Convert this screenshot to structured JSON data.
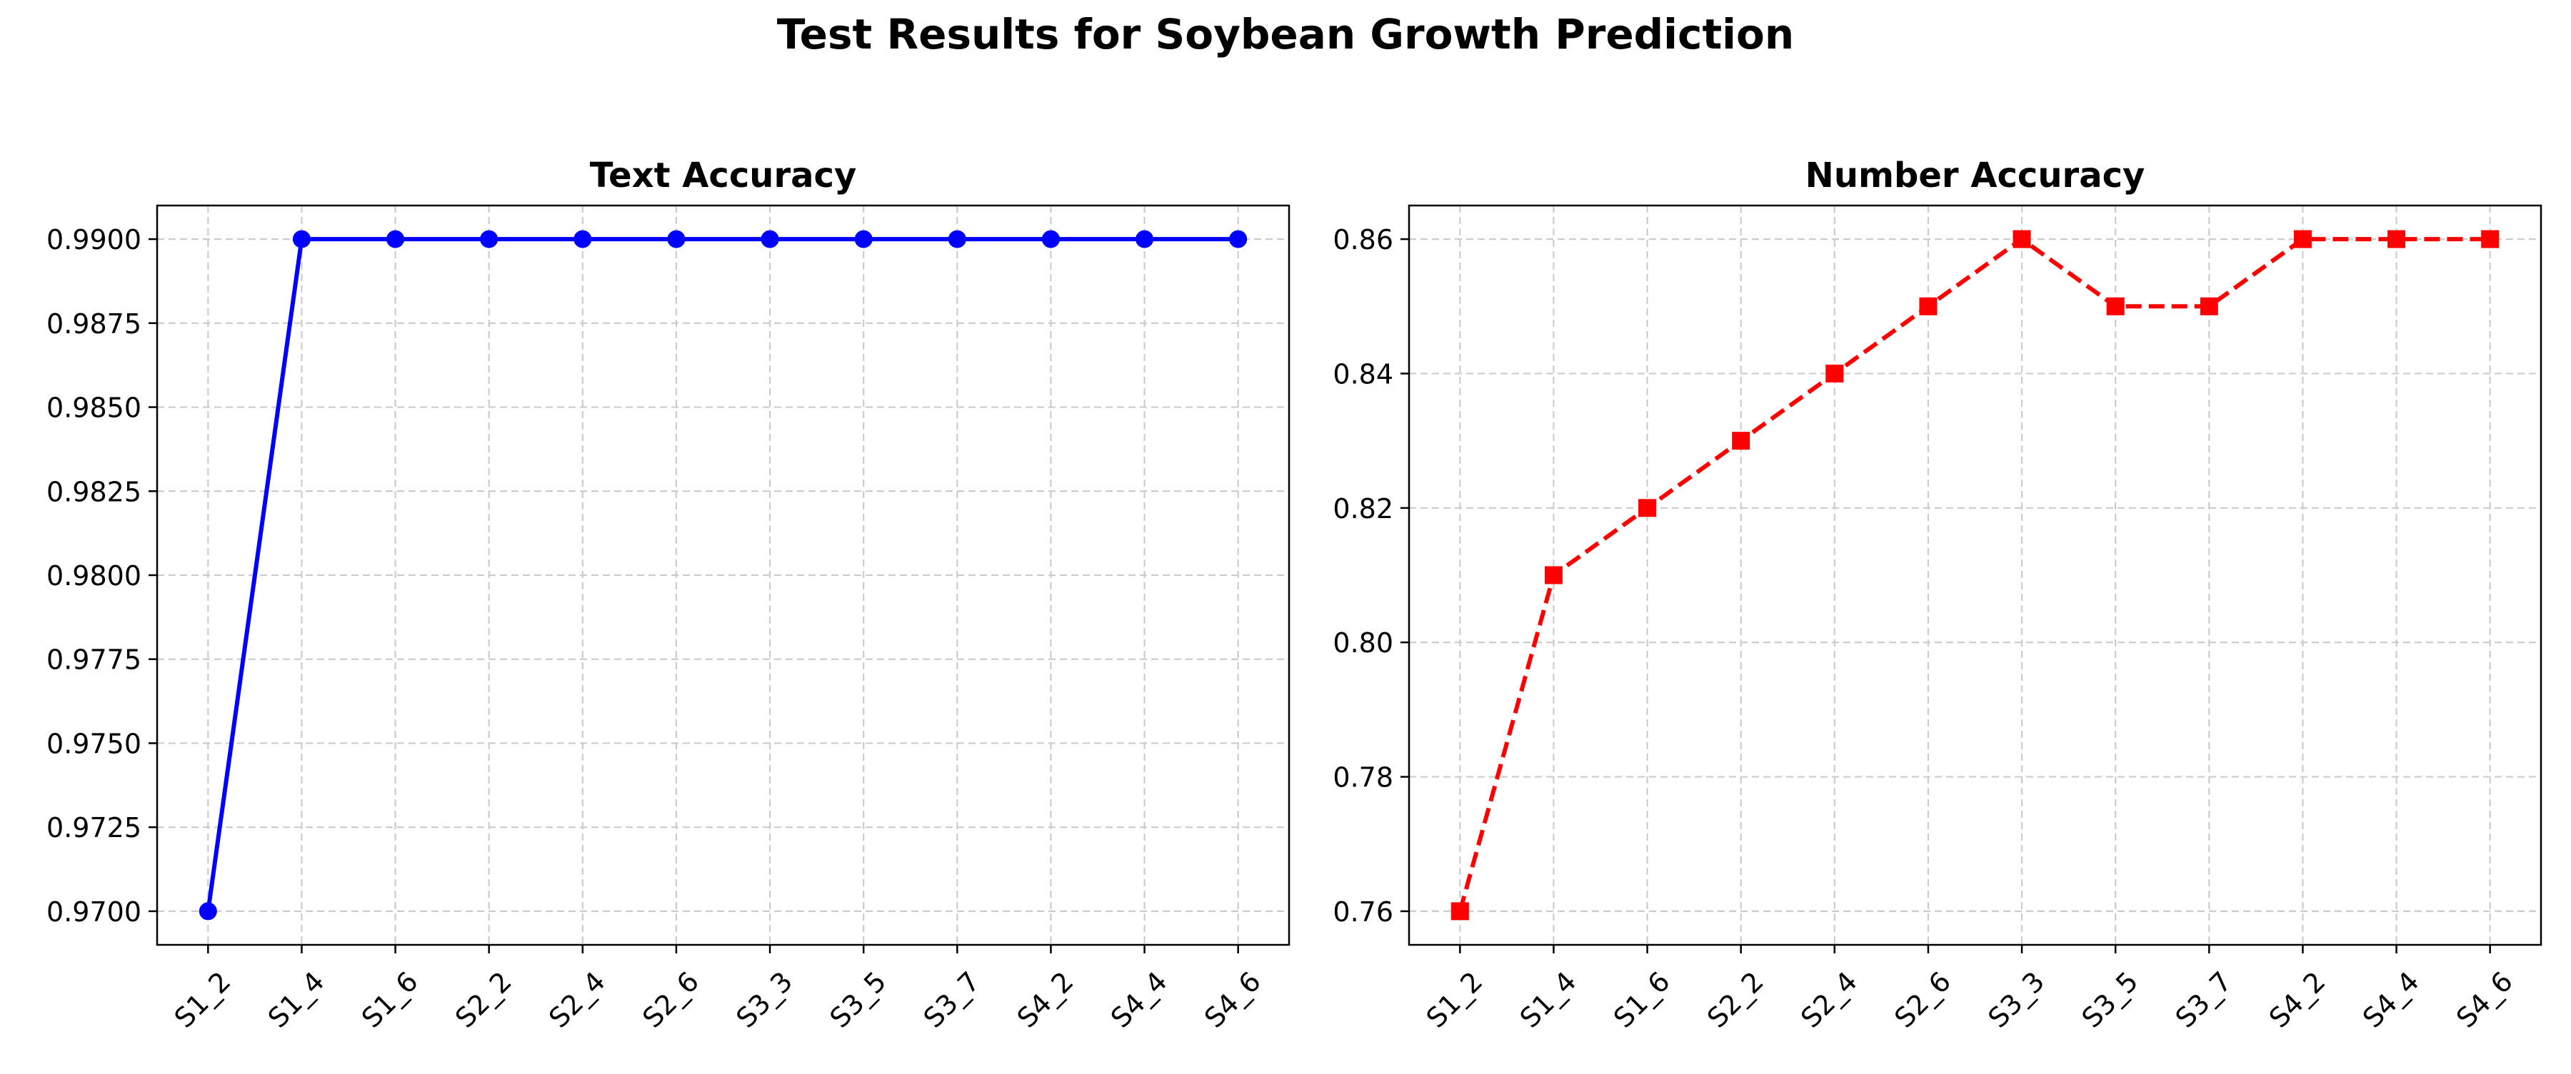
{
  "figure": {
    "title": "Test Results for Soybean Growth Prediction"
  },
  "chart_data": [
    {
      "type": "line",
      "title": "Text Accuracy",
      "xlabel": "",
      "ylabel": "",
      "categories": [
        "S1_2",
        "S1_4",
        "S1_6",
        "S2_2",
        "S2_4",
        "S2_6",
        "S3_3",
        "S3_5",
        "S3_7",
        "S4_2",
        "S4_4",
        "S4_6"
      ],
      "series": [
        {
          "values": [
            0.97,
            0.99,
            0.99,
            0.99,
            0.99,
            0.99,
            0.99,
            0.99,
            0.99,
            0.99,
            0.99,
            0.99
          ],
          "color": "#0000ff",
          "line_style": "solid",
          "marker": "circle"
        }
      ],
      "yticks": [
        "0.9700",
        "0.9725",
        "0.9750",
        "0.9775",
        "0.9800",
        "0.9825",
        "0.9850",
        "0.9875",
        "0.9900"
      ],
      "ylim": [
        0.969,
        0.991
      ],
      "grid": true,
      "tick_label_rotation": 45
    },
    {
      "type": "line",
      "title": "Number Accuracy",
      "xlabel": "",
      "ylabel": "",
      "categories": [
        "S1_2",
        "S1_4",
        "S1_6",
        "S2_2",
        "S2_4",
        "S2_6",
        "S3_3",
        "S3_5",
        "S3_7",
        "S4_2",
        "S4_4",
        "S4_6"
      ],
      "series": [
        {
          "values": [
            0.76,
            0.81,
            0.82,
            0.83,
            0.84,
            0.85,
            0.86,
            0.85,
            0.85,
            0.86,
            0.86,
            0.86
          ],
          "color": "#ff0000",
          "line_style": "dashed",
          "marker": "square"
        }
      ],
      "yticks": [
        "0.76",
        "0.78",
        "0.80",
        "0.82",
        "0.84",
        "0.86"
      ],
      "ylim": [
        0.755,
        0.865
      ],
      "grid": true,
      "tick_label_rotation": 45
    }
  ]
}
